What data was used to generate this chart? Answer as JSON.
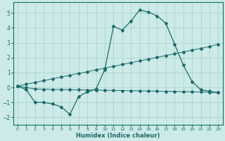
{
  "xlabel": "Humidex (Indice chaleur)",
  "background_color": "#cceae7",
  "grid_color": "#aad4d0",
  "line_color": "#1a6b6b",
  "xlim": [
    -0.5,
    23.5
  ],
  "ylim": [
    -2.5,
    5.7
  ],
  "yticks": [
    -2,
    -1,
    0,
    1,
    2,
    3,
    4,
    5
  ],
  "xticks": [
    0,
    1,
    2,
    3,
    4,
    5,
    6,
    7,
    8,
    9,
    10,
    11,
    12,
    13,
    14,
    15,
    16,
    17,
    18,
    19,
    20,
    21,
    22,
    23
  ],
  "series1_x": [
    0,
    1,
    2,
    3,
    4,
    5,
    6,
    7,
    8,
    9,
    10,
    11,
    12,
    13,
    14,
    15,
    16,
    17,
    18,
    19,
    20,
    21,
    22,
    23
  ],
  "series1_y": [
    0.1,
    -0.15,
    -1.0,
    -1.0,
    -1.1,
    -1.3,
    -1.8,
    -0.6,
    -0.3,
    -0.1,
    1.2,
    4.1,
    3.85,
    4.45,
    5.2,
    5.05,
    4.8,
    4.3,
    2.9,
    1.5,
    0.4,
    -0.15,
    -0.25,
    -0.35
  ],
  "series2_x": [
    0,
    1,
    2,
    3,
    4,
    5,
    6,
    7,
    8,
    9,
    10,
    11,
    12,
    13,
    14,
    15,
    16,
    17,
    18,
    19,
    20,
    21,
    22,
    23
  ],
  "series2_y": [
    0.1,
    0.0,
    -0.1,
    -0.12,
    -0.13,
    -0.14,
    -0.15,
    -0.16,
    -0.17,
    -0.18,
    -0.19,
    -0.2,
    -0.21,
    -0.22,
    -0.23,
    -0.24,
    -0.25,
    -0.26,
    -0.27,
    -0.28,
    -0.29,
    -0.3,
    -0.32,
    -0.35
  ],
  "series3_x": [
    0,
    1,
    2,
    3,
    4,
    5,
    6,
    7,
    8,
    9,
    10,
    11,
    12,
    13,
    14,
    15,
    16,
    17,
    18,
    19,
    20,
    21,
    22,
    23
  ],
  "series3_y": [
    0.1,
    0.22,
    0.34,
    0.46,
    0.58,
    0.7,
    0.82,
    0.94,
    1.06,
    1.18,
    1.3,
    1.42,
    1.54,
    1.66,
    1.78,
    1.9,
    2.02,
    2.14,
    2.26,
    2.38,
    2.5,
    2.62,
    2.74,
    2.9
  ]
}
